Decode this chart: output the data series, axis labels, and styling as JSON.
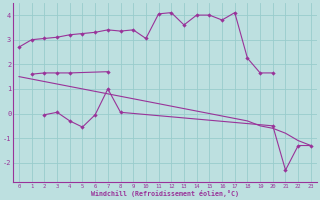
{
  "bg_color": "#bde0e0",
  "line_color": "#993399",
  "grid_color": "#99cccc",
  "xlabel": "Windchill (Refroidissement éolien,°C)",
  "ylim": [
    -2.8,
    4.5
  ],
  "xlim": [
    -0.5,
    23.5
  ],
  "yticks": [
    -2,
    -1,
    0,
    1,
    2,
    3,
    4
  ],
  "xticks": [
    0,
    1,
    2,
    3,
    4,
    5,
    6,
    7,
    8,
    9,
    10,
    11,
    12,
    13,
    14,
    15,
    16,
    17,
    18,
    19,
    20,
    21,
    22,
    23
  ],
  "line1_x": [
    0,
    1,
    2,
    3,
    4,
    5,
    6,
    7,
    8,
    9,
    10,
    11,
    12,
    13,
    14,
    15,
    16,
    17,
    18,
    19,
    20
  ],
  "line1_y": [
    2.7,
    3.0,
    3.05,
    3.1,
    3.2,
    3.25,
    3.3,
    3.4,
    3.35,
    3.4,
    3.05,
    4.05,
    4.1,
    3.6,
    4.0,
    4.0,
    3.8,
    4.1,
    2.25,
    1.65,
    1.65
  ],
  "line2_x": [
    1,
    2,
    3,
    4,
    7
  ],
  "line2_y": [
    1.6,
    1.65,
    1.65,
    1.65,
    1.7
  ],
  "line3_x": [
    0,
    1,
    2,
    3,
    4,
    5,
    6,
    7,
    8,
    9,
    10,
    11,
    12,
    13,
    14,
    15,
    16,
    17,
    18,
    19,
    20,
    21,
    22,
    23
  ],
  "line3_y": [
    1.5,
    1.4,
    1.3,
    1.2,
    1.1,
    1.0,
    0.9,
    0.8,
    0.7,
    0.6,
    0.5,
    0.4,
    0.3,
    0.2,
    0.1,
    0.0,
    -0.1,
    -0.2,
    -0.3,
    -0.5,
    -0.6,
    -0.8,
    -1.1,
    -1.3
  ],
  "line4_x": [
    2,
    3,
    4,
    5,
    6,
    7,
    8,
    20,
    21,
    22,
    23
  ],
  "line4_y": [
    -0.05,
    0.05,
    -0.3,
    -0.55,
    -0.05,
    1.0,
    0.05,
    -0.5,
    -2.3,
    -1.3,
    -1.3
  ]
}
